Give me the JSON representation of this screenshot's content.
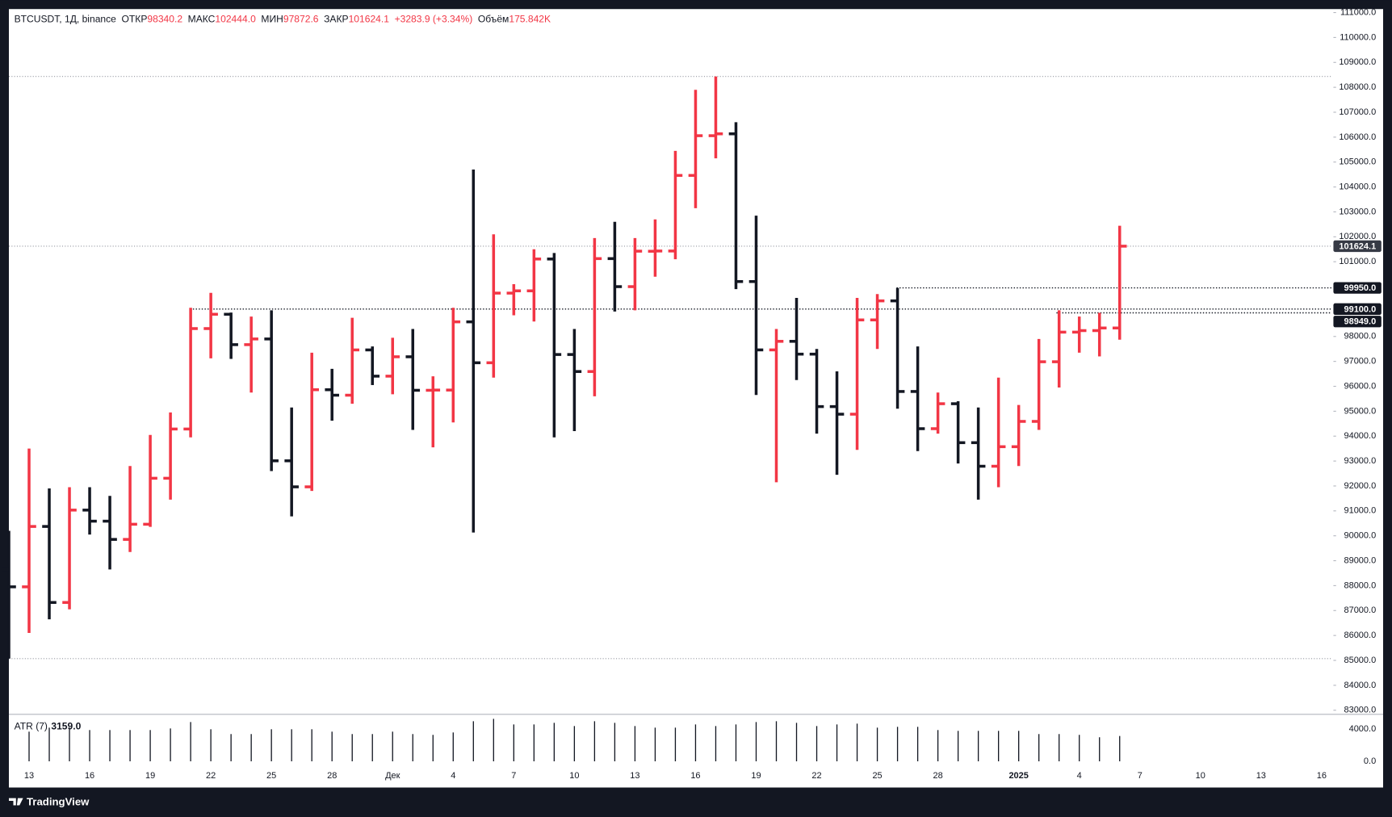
{
  "chart_data": {
    "type": "ohlc",
    "header": {
      "symbol": "BTCUSDT, 1Д, binance",
      "open_label": "ОТКР",
      "open": "98340.2",
      "high_label": "МАКС",
      "high": "102444.0",
      "low_label": "МИН",
      "low": "97872.6",
      "close_label": "ЗАКР",
      "close": "101624.1",
      "change": "+3283.9 (+3.34%)",
      "volume_label": "Объём",
      "volume": "175.842K"
    },
    "categories": [
      null,
      "13",
      null,
      null,
      "16",
      null,
      null,
      "19",
      null,
      null,
      "22",
      null,
      null,
      "25",
      null,
      null,
      "28",
      null,
      null,
      "Дек",
      null,
      null,
      "4",
      null,
      null,
      "7",
      null,
      null,
      "10",
      null,
      null,
      "13",
      null,
      null,
      "16",
      null,
      null,
      "19",
      null,
      null,
      "22",
      null,
      null,
      "25",
      null,
      null,
      "28",
      null,
      null,
      null,
      "2025",
      null,
      null,
      "4",
      null,
      null,
      "7",
      null,
      null,
      "10",
      null,
      null,
      "13",
      null,
      null,
      "16"
    ],
    "open": [
      88648,
      87952,
      90375,
      87325,
      91032,
      90587,
      89855,
      90464,
      92310,
      94286,
      98317,
      98892,
      97672,
      97900,
      93010,
      91965,
      95863,
      95643,
      97460,
      96407,
      97185,
      95840,
      95849,
      98587,
      96945,
      99740,
      99831,
      101109,
      97276,
      96593,
      101125,
      100000,
      101420,
      101430,
      104463,
      106058,
      106133,
      100204,
      97461,
      97805,
      97291,
      95186,
      94881,
      98664,
      99429,
      95792,
      94299,
      95301,
      93738,
      92792,
      93576,
      94591,
      96985,
      98174,
      98236,
      98340.2,
      null,
      null,
      null,
      null,
      null,
      null,
      null,
      null,
      null,
      null
    ],
    "high": [
      90200,
      93500,
      91900,
      91950,
      91950,
      91600,
      92800,
      94050,
      94950,
      99150,
      99750,
      98960,
      98800,
      99050,
      95150,
      97350,
      96700,
      98750,
      97600,
      97950,
      98300,
      96400,
      99150,
      104700,
      102100,
      100100,
      101500,
      101350,
      98300,
      101950,
      102600,
      101950,
      102700,
      105450,
      107900,
      108435,
      106600,
      102850,
      98300,
      99550,
      97500,
      96600,
      99550,
      99700,
      99950,
      97600,
      95750,
      95400,
      95150,
      96350,
      95250,
      97900,
      99050,
      98800,
      98950,
      102444.0,
      null,
      null,
      null,
      null,
      null,
      null,
      null,
      null,
      null,
      null
    ],
    "low": [
      85072,
      86100,
      86650,
      87050,
      90050,
      88650,
      89350,
      90357,
      91450,
      93950,
      97120,
      97100,
      95750,
      92600,
      90780,
      91800,
      94620,
      95300,
      96050,
      95680,
      94250,
      93550,
      94550,
      90130,
      96350,
      98850,
      98600,
      93950,
      94200,
      95600,
      99000,
      99050,
      100400,
      101100,
      103150,
      105150,
      99900,
      95650,
      92150,
      96250,
      94100,
      92450,
      93450,
      97500,
      95100,
      93400,
      94100,
      92900,
      91450,
      91950,
      92800,
      94250,
      95950,
      97350,
      97200,
      97872.6,
      null,
      null,
      null,
      null,
      null,
      null,
      null,
      null,
      null,
      null
    ],
    "close": [
      87952,
      90375,
      87325,
      91032,
      90587,
      89855,
      90464,
      92310,
      94286,
      98317,
      98892,
      97672,
      97900,
      93010,
      91965,
      95863,
      95643,
      97460,
      96407,
      97185,
      95840,
      95849,
      98587,
      96945,
      99740,
      99831,
      101109,
      97276,
      96593,
      101125,
      100000,
      101424,
      101430,
      104463,
      106058,
      106133,
      100204,
      97461,
      97805,
      97291,
      95186,
      94881,
      98664,
      99429,
      95792,
      94299,
      95301,
      93738,
      92792,
      93576,
      94591,
      96985,
      98174,
      98236,
      98340.2,
      101624.1,
      null,
      null,
      null,
      null,
      null,
      null,
      null,
      null,
      null,
      null
    ],
    "up_color": "#f23645",
    "down_color": "#131722",
    "ylim": [
      82890,
      111140
    ],
    "yticks": [
      {
        "value": 83000,
        "label": "83000.0"
      },
      {
        "value": 84000,
        "label": "84000.0"
      },
      {
        "value": 85000,
        "label": "85000.0"
      },
      {
        "value": 86000,
        "label": "86000.0"
      },
      {
        "value": 87000,
        "label": "87000.0"
      },
      {
        "value": 88000,
        "label": "88000.0"
      },
      {
        "value": 89000,
        "label": "89000.0"
      },
      {
        "value": 90000,
        "label": "90000.0"
      },
      {
        "value": 91000,
        "label": "91000.0"
      },
      {
        "value": 92000,
        "label": "92000.0"
      },
      {
        "value": 93000,
        "label": "93000.0"
      },
      {
        "value": 94000,
        "label": "94000.0"
      },
      {
        "value": 95000,
        "label": "95000.0"
      },
      {
        "value": 96000,
        "label": "96000.0"
      },
      {
        "value": 97000,
        "label": "97000.0"
      },
      {
        "value": 98000,
        "label": "98000.0"
      },
      {
        "value": 99000,
        "label": "99000.0"
      },
      {
        "value": 100000,
        "label": "100000.0"
      },
      {
        "value": 101000,
        "label": "101000.0"
      },
      {
        "value": 102000,
        "label": "102000.0"
      },
      {
        "value": 103000,
        "label": "103000.0"
      },
      {
        "value": 104000,
        "label": "104000.0"
      },
      {
        "value": 105000,
        "label": "105000.0"
      },
      {
        "value": 106000,
        "label": "106000.0"
      },
      {
        "value": 107000,
        "label": "107000.0"
      },
      {
        "value": 108000,
        "label": "108000.0"
      },
      {
        "value": 109000,
        "label": "109000.0"
      },
      {
        "value": 110000,
        "label": "110000.0"
      },
      {
        "value": 111000,
        "label": "111000.0"
      }
    ],
    "levels": [
      {
        "value": 99950,
        "label": "99950.0"
      },
      {
        "value": 99100,
        "label": "99100.0"
      },
      {
        "value": 98949,
        "label": "98949.0"
      }
    ],
    "atr": {
      "name": "ATR (7)",
      "value_text": "3159.0",
      "color": "#131722",
      "values": [
        null,
        3700,
        4200,
        4200,
        3900,
        3900,
        3900,
        3900,
        4100,
        4900,
        4000,
        3400,
        3400,
        4000,
        4000,
        4000,
        3700,
        3400,
        3400,
        3700,
        3400,
        3300,
        3600,
        5000,
        5300,
        4600,
        4600,
        4800,
        4400,
        5000,
        4800,
        4400,
        4200,
        4200,
        4600,
        4400,
        4600,
        4900,
        5000,
        4800,
        4400,
        4600,
        4700,
        4200,
        4300,
        4300,
        3900,
        3800,
        3800,
        3800,
        3800,
        3400,
        3400,
        3300,
        3000,
        3159,
        null,
        null,
        null,
        null,
        null,
        null,
        null,
        null,
        null,
        null
      ],
      "ylim": [
        -500,
        5700
      ],
      "yticks": [
        {
          "value": 4000,
          "label": "4000.0"
        },
        {
          "value": 0,
          "label": "0.0"
        }
      ]
    },
    "footer": "TradingView"
  }
}
